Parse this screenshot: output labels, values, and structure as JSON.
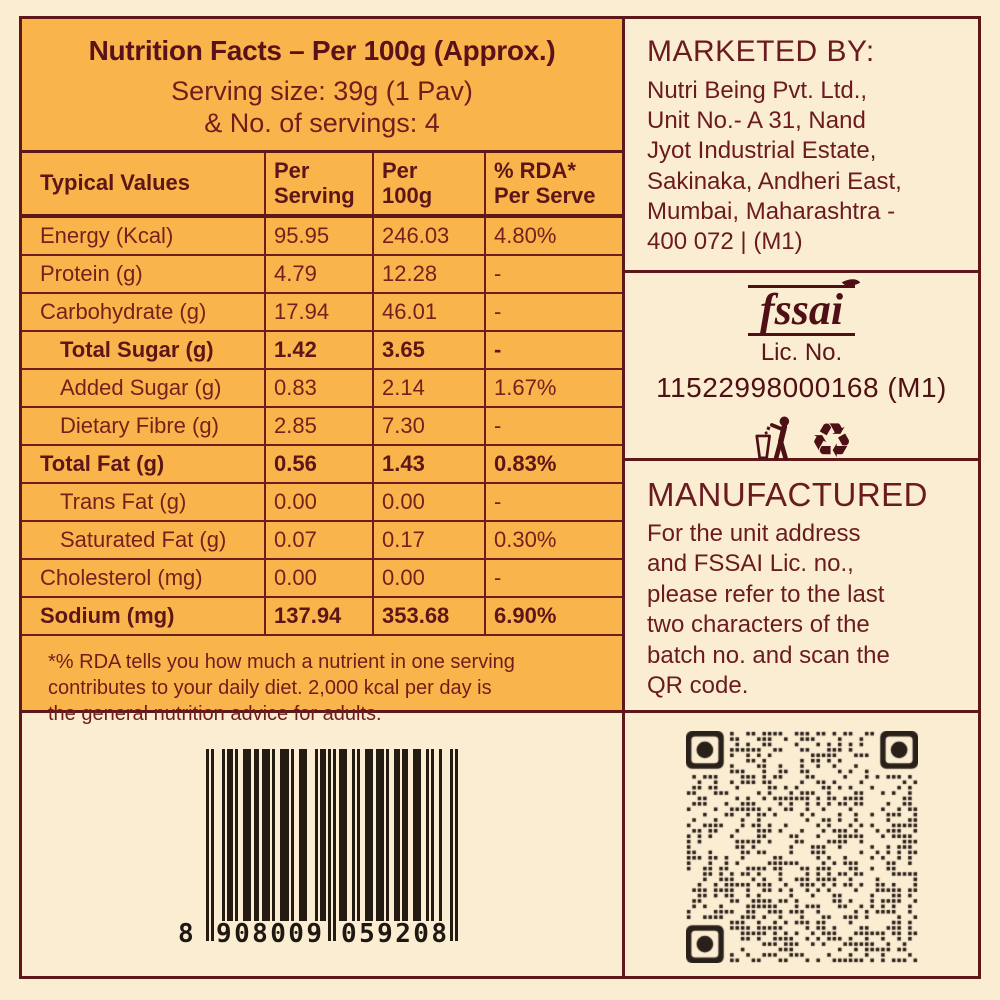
{
  "colors": {
    "background_cream": "#FAEDD2",
    "panel_orange": "#F9B54C",
    "border_maroon": "#5E181A",
    "text_maroon": "#73201D",
    "text_dark_maroon": "#5E1517",
    "barcode_ink": "#241B13"
  },
  "nutrition_panel": {
    "title": "Nutrition Facts – Per 100g (Approx.)",
    "serving_line1": "Serving size: 39g (1 Pav)",
    "serving_line2": "& No. of servings: 4",
    "table": {
      "header_lines": [
        [
          "Typical Values"
        ],
        [
          "Per",
          "Serving"
        ],
        [
          "Per",
          "100g"
        ],
        [
          "% RDA*",
          "Per Serve"
        ]
      ],
      "rows": [
        {
          "label": "Energy (Kcal)",
          "per_serving": "95.95",
          "per_100g": "246.03",
          "rda": "4.80%",
          "bold": false,
          "indent": 0
        },
        {
          "label": "Protein (g)",
          "per_serving": "4.79",
          "per_100g": "12.28",
          "rda": "-",
          "bold": false,
          "indent": 0
        },
        {
          "label": "Carbohydrate (g)",
          "per_serving": "17.94",
          "per_100g": "46.01",
          "rda": "-",
          "bold": false,
          "indent": 0
        },
        {
          "label": "Total Sugar (g)",
          "per_serving": "1.42",
          "per_100g": "3.65",
          "rda": "-",
          "bold": true,
          "indent": 1
        },
        {
          "label": "Added Sugar (g)",
          "per_serving": "0.83",
          "per_100g": "2.14",
          "rda": "1.67%",
          "bold": false,
          "indent": 1
        },
        {
          "label": "Dietary Fibre (g)",
          "per_serving": "2.85",
          "per_100g": "7.30",
          "rda": "-",
          "bold": false,
          "indent": 1
        },
        {
          "label": "Total Fat (g)",
          "per_serving": "0.56",
          "per_100g": "1.43",
          "rda": "0.83%",
          "bold": true,
          "indent": 0
        },
        {
          "label": "Trans Fat (g)",
          "per_serving": "0.00",
          "per_100g": "0.00",
          "rda": "-",
          "bold": false,
          "indent": 1
        },
        {
          "label": "Saturated Fat (g)",
          "per_serving": "0.07",
          "per_100g": "0.17",
          "rda": "0.30%",
          "bold": false,
          "indent": 1
        },
        {
          "label": "Cholesterol (mg)",
          "per_serving": "0.00",
          "per_100g": "0.00",
          "rda": "-",
          "bold": false,
          "indent": 0
        },
        {
          "label": "Sodium (mg)",
          "per_serving": "137.94",
          "per_100g": "353.68",
          "rda": "6.90%",
          "bold": true,
          "indent": 0
        }
      ]
    },
    "footnote_lines": [
      "*% RDA tells you how much a nutrient in one serving",
      "contributes to your daily diet. 2,000 kcal per day is",
      "the general nutrition advice for adults."
    ]
  },
  "marketed_by": {
    "title": "MARKETED BY:",
    "address_lines": [
      "Nutri Being Pvt. Ltd.,",
      "Unit No.- A 31, Nand",
      "Jyot Industrial Estate,",
      "Sakinaka, Andheri East,",
      "Mumbai, Maharashtra -",
      "400 072 | (M1)"
    ]
  },
  "fssai": {
    "logo_text": "fssai",
    "lic_label": "Lic. No.",
    "lic_number": "11522998000168 (M1)"
  },
  "manufactured": {
    "title": "MANUFACTURED",
    "body_lines": [
      "For the unit address",
      "and FSSAI Lic. no.,",
      "please refer to the last",
      "two characters of the",
      "batch no. and scan the",
      "QR code."
    ]
  },
  "barcode": {
    "number": "8908009059208",
    "first_digit": "8",
    "left_group": "908009",
    "right_group": "059208",
    "modules": "10100010110100111011011101001110100111000101101010111001010011101110100110110011100101001000101"
  },
  "icons": {
    "recycle_icon": "♻",
    "tidy_man_icon": "tidy-man (dispose litter properly)",
    "qr_icon": "qr-code",
    "fssai_leaf_icon": "leaf"
  }
}
